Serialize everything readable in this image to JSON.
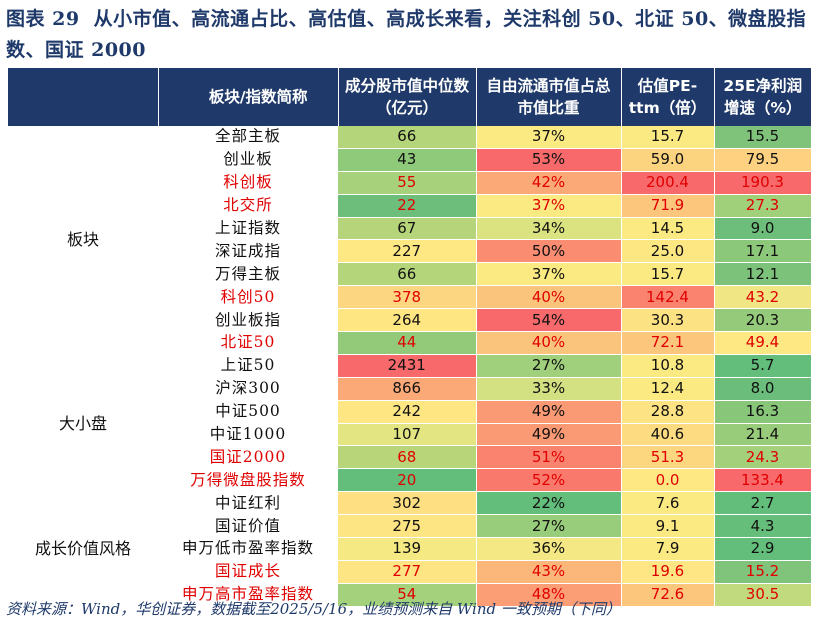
{
  "title": {
    "figure_label": "图表 29",
    "text": "从小市值、高流通占比、高估值、高成长来看，关注科创 50、北证 50、微盘股指数、国证 2000"
  },
  "table": {
    "headers": [
      "板块/指数简称",
      "成分股市值中位数（亿元）",
      "自由流通市值占总市值比重",
      "估值PE-ttm（倍）",
      "25E净利润增速（%）"
    ],
    "groups": [
      {
        "label": "板块",
        "rows": [
          {
            "name": "全部主板",
            "red": false,
            "cells": [
              "66",
              "37%",
              "15.7",
              "15.5"
            ],
            "colors": [
              "#b4d57a",
              "#fbe982",
              "#fbe982",
              "#7fc37a"
            ]
          },
          {
            "name": "创业板",
            "red": false,
            "cells": [
              "43",
              "53%",
              "59.0",
              "79.5"
            ],
            "colors": [
              "#8fc97a",
              "#f8696b",
              "#fcd47f",
              "#fdd17f"
            ]
          },
          {
            "name": "科创板",
            "red": true,
            "cells": [
              "55",
              "42%",
              "200.4",
              "190.3"
            ],
            "colors": [
              "#a7d27b",
              "#fbaa77",
              "#f8696b",
              "#f8696b"
            ]
          },
          {
            "name": "北交所",
            "red": true,
            "cells": [
              "22",
              "37%",
              "71.9",
              "27.3"
            ],
            "colors": [
              "#6ebe7b",
              "#fbe982",
              "#fcc77d",
              "#a1d07b"
            ]
          },
          {
            "name": "上证指数",
            "red": false,
            "cells": [
              "67",
              "34%",
              "14.5",
              "9.0"
            ],
            "colors": [
              "#b6d57a",
              "#dbe381",
              "#fbe982",
              "#6ebe7b"
            ]
          },
          {
            "name": "深证成指",
            "red": false,
            "cells": [
              "227",
              "50%",
              "25.0",
              "17.1"
            ],
            "colors": [
              "#fee883",
              "#fa8c72",
              "#fde783",
              "#8cc87a"
            ]
          },
          {
            "name": "万得主板",
            "red": false,
            "cells": [
              "66",
              "37%",
              "15.7",
              "12.1"
            ],
            "colors": [
              "#b4d57a",
              "#fbe982",
              "#fbe982",
              "#7dc27a"
            ]
          },
          {
            "name": "科创50",
            "red": true,
            "cells": [
              "378",
              "40%",
              "142.4",
              "43.2"
            ],
            "colors": [
              "#fcd680",
              "#fbc47d",
              "#f9836f",
              "#f0e683"
            ]
          },
          {
            "name": "创业板指",
            "red": false,
            "cells": [
              "264",
              "54%",
              "30.3",
              "20.3"
            ],
            "colors": [
              "#fee783",
              "#f8696b",
              "#fde283",
              "#94ca7a"
            ]
          },
          {
            "name": "北证50",
            "red": true,
            "cells": [
              "44",
              "40%",
              "72.1",
              "49.4"
            ],
            "colors": [
              "#92ca7a",
              "#fbc47d",
              "#fcc77d",
              "#fee883"
            ]
          }
        ]
      },
      {
        "label": "大小盘",
        "rows": [
          {
            "name": "上证50",
            "red": false,
            "cells": [
              "2431",
              "27%",
              "10.8",
              "5.7"
            ],
            "colors": [
              "#f8696b",
              "#a0d07b",
              "#fbe982",
              "#63be7b"
            ]
          },
          {
            "name": "沪深300",
            "red": false,
            "cells": [
              "866",
              "33%",
              "12.4",
              "8.0"
            ],
            "colors": [
              "#fbaa77",
              "#d4e182",
              "#fbe982",
              "#6bbd7b"
            ]
          },
          {
            "name": "中证500",
            "red": false,
            "cells": [
              "242",
              "49%",
              "28.8",
              "16.3"
            ],
            "colors": [
              "#fee783",
              "#fa9a74",
              "#fde383",
              "#88c67a"
            ]
          },
          {
            "name": "中证1000",
            "red": false,
            "cells": [
              "107",
              "49%",
              "40.6",
              "21.4"
            ],
            "colors": [
              "#e3e582",
              "#fa9a74",
              "#fddc81",
              "#98cb7a"
            ]
          },
          {
            "name": "国证2000",
            "red": true,
            "cells": [
              "68",
              "51%",
              "51.3",
              "24.3"
            ],
            "colors": [
              "#b8d57a",
              "#f9836f",
              "#fdd680",
              "#a2d07b"
            ]
          },
          {
            "name": "万得微盘股指数",
            "red": true,
            "cells": [
              "20",
              "52%",
              "0.0",
              "133.4"
            ],
            "colors": [
              "#63be7b",
              "#f9796d",
              "#fde883",
              "#f8696b"
            ]
          }
        ]
      },
      {
        "label": "成长价值风格",
        "rows": [
          {
            "name": "中证红利",
            "red": false,
            "cells": [
              "302",
              "22%",
              "7.6",
              "2.7"
            ],
            "colors": [
              "#fee083",
              "#63be7b",
              "#fbe982",
              "#63be7b"
            ]
          },
          {
            "name": "国证价值",
            "red": false,
            "cells": [
              "275",
              "27%",
              "9.1",
              "4.3"
            ],
            "colors": [
              "#fee583",
              "#98cd7b",
              "#fbe982",
              "#66be7b"
            ]
          },
          {
            "name": "申万低市盈率指数",
            "red": false,
            "cells": [
              "139",
              "36%",
              "7.9",
              "2.9"
            ],
            "colors": [
              "#f5e984",
              "#f3e884",
              "#fbe982",
              "#63be7b"
            ]
          },
          {
            "name": "国证成长",
            "red": true,
            "cells": [
              "277",
              "43%",
              "19.6",
              "15.2"
            ],
            "colors": [
              "#fee583",
              "#fbb779",
              "#fde683",
              "#80c37a"
            ]
          },
          {
            "name": "申万高市盈率指数",
            "red": true,
            "cells": [
              "54",
              "48%",
              "72.6",
              "30.5"
            ],
            "colors": [
              "#a4d17b",
              "#fb9e75",
              "#fcc67d",
              "#c2da7e"
            ]
          }
        ]
      }
    ]
  },
  "footer": "资料来源：Wind，华创证券，数据截至2025/5/16，业绩预测来自 Wind 一致预期（下同）"
}
